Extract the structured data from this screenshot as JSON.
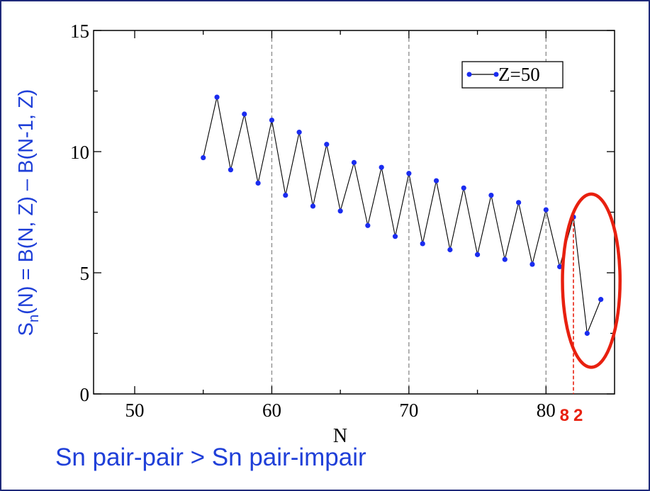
{
  "caption": "Sn pair-pair > Sn pair-impair",
  "colors": {
    "point": "#1a2cf0",
    "line": "#000000",
    "ylabel": "#1f3fd8",
    "highlight": "#e8200f",
    "border": "#1f2a7a"
  },
  "chart_data": {
    "type": "line",
    "xlabel": "N",
    "ylabel": {
      "main": "S",
      "sub": "n",
      "rest": "(N) = B(N, Z) – B(N-1, Z)"
    },
    "xlim": [
      47,
      85
    ],
    "ylim": [
      0,
      15
    ],
    "xticks": [
      50,
      60,
      70,
      80
    ],
    "yticks": [
      0,
      5,
      10,
      15
    ],
    "grid_vlines": [
      60,
      70,
      80
    ],
    "legend": {
      "label": "Z=50",
      "position": "top-right"
    },
    "series": [
      {
        "name": "Z=50",
        "x": [
          55,
          56,
          57,
          58,
          59,
          60,
          61,
          62,
          63,
          64,
          65,
          66,
          67,
          68,
          69,
          70,
          71,
          72,
          73,
          74,
          75,
          76,
          77,
          78,
          79,
          80,
          81,
          82,
          83,
          84
        ],
        "y": [
          9.75,
          12.25,
          9.25,
          11.55,
          8.7,
          11.3,
          8.2,
          10.8,
          7.75,
          10.3,
          7.55,
          9.55,
          6.95,
          9.35,
          6.5,
          9.1,
          6.2,
          8.8,
          5.95,
          8.5,
          5.75,
          8.2,
          5.55,
          7.9,
          5.35,
          7.6,
          5.25,
          7.3,
          2.5,
          3.9
        ]
      }
    ],
    "annotation": {
      "label": "82",
      "x": 82,
      "ellipse_x_range": [
        81.2,
        85.4
      ],
      "ellipse_y_range": [
        1.1,
        8.25
      ]
    }
  }
}
